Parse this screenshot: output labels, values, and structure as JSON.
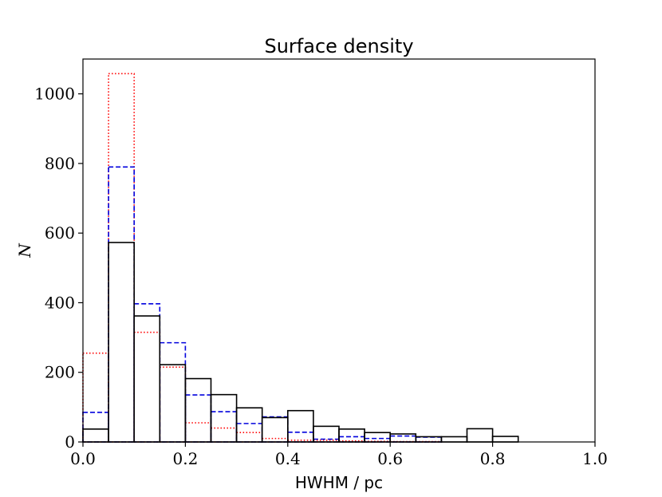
{
  "chart_data": {
    "type": "histogram",
    "title": "Surface density",
    "xlabel": "HWHM / pc",
    "ylabel": "N",
    "xlim": [
      0.0,
      1.0
    ],
    "ylim": [
      0,
      1100
    ],
    "xticks": [
      "0.0",
      "0.2",
      "0.4",
      "0.6",
      "0.8",
      "1.0"
    ],
    "xtick_values": [
      0.0,
      0.2,
      0.4,
      0.6,
      0.8,
      1.0
    ],
    "yticks": [
      "0",
      "200",
      "400",
      "600",
      "800",
      "1000"
    ],
    "ytick_values": [
      0,
      200,
      400,
      600,
      800,
      1000
    ],
    "bin_edges": [
      0.0,
      0.05,
      0.1,
      0.15,
      0.2,
      0.25,
      0.3,
      0.35,
      0.4,
      0.45,
      0.5,
      0.55,
      0.6,
      0.65,
      0.7,
      0.75,
      0.8,
      0.85,
      0.9,
      0.95,
      1.0
    ],
    "series": [
      {
        "name": "dotted-red",
        "color": "#ff0000",
        "linestyle": "dotted",
        "values": [
          255,
          1058,
          315,
          215,
          55,
          40,
          27,
          10,
          5,
          5,
          3,
          2,
          1,
          1,
          0,
          0,
          0,
          0,
          0,
          0
        ]
      },
      {
        "name": "dashed-blue",
        "color": "#0000dd",
        "linestyle": "dashed",
        "values": [
          85,
          790,
          397,
          285,
          135,
          87,
          53,
          72,
          28,
          8,
          15,
          10,
          17,
          14,
          0,
          0,
          0,
          0,
          0,
          0
        ]
      },
      {
        "name": "solid-black",
        "color": "#000000",
        "linestyle": "solid",
        "values": [
          37,
          573,
          362,
          222,
          182,
          136,
          98,
          70,
          90,
          45,
          37,
          27,
          23,
          15,
          15,
          38,
          16,
          0,
          0,
          0
        ]
      }
    ]
  }
}
